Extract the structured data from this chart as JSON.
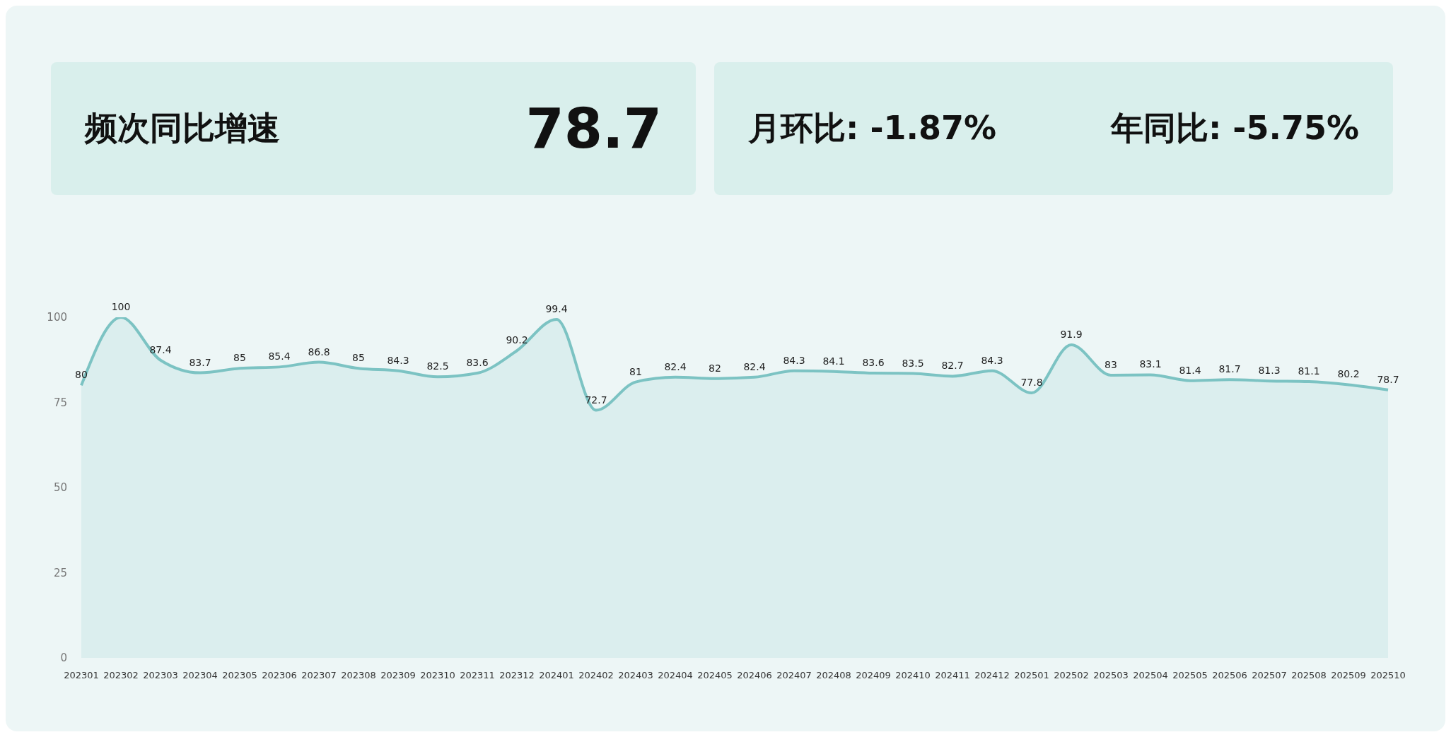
{
  "chart_data": [
    {
      "type": "other",
      "title": "频次同比增速",
      "annotations": [
        "78.7"
      ]
    },
    {
      "type": "other",
      "annotations": [
        "月环比: -1.87%",
        "年同比: -5.75%"
      ]
    },
    {
      "type": "area",
      "categories": [
        "202301",
        "202302",
        "202303",
        "202304",
        "202305",
        "202306",
        "202307",
        "202308",
        "202309",
        "202310",
        "202311",
        "202312",
        "202401",
        "202402",
        "202403",
        "202404",
        "202405",
        "202406",
        "202407",
        "202408",
        "202409",
        "202410",
        "202411",
        "202412",
        "202501",
        "202502",
        "202503",
        "202504",
        "202505",
        "202506",
        "202507",
        "202508",
        "202509",
        "202510"
      ],
      "values": [
        80,
        100,
        87.4,
        83.7,
        85,
        85.4,
        86.8,
        85,
        84.3,
        82.5,
        83.6,
        90.2,
        99.4,
        72.7,
        81,
        82.4,
        82,
        82.4,
        84.3,
        84.1,
        83.6,
        83.5,
        82.7,
        84.3,
        77.8,
        91.9,
        83,
        83.1,
        81.4,
        81.7,
        81.3,
        81.1,
        80.2,
        78.7
      ],
      "color": "#7cc3c3",
      "ylim": [
        0,
        100
      ],
      "yticks": [
        0,
        25,
        50,
        75,
        100
      ],
      "grid": false,
      "legend": false,
      "marker": "none",
      "data_labels": true
    }
  ]
}
